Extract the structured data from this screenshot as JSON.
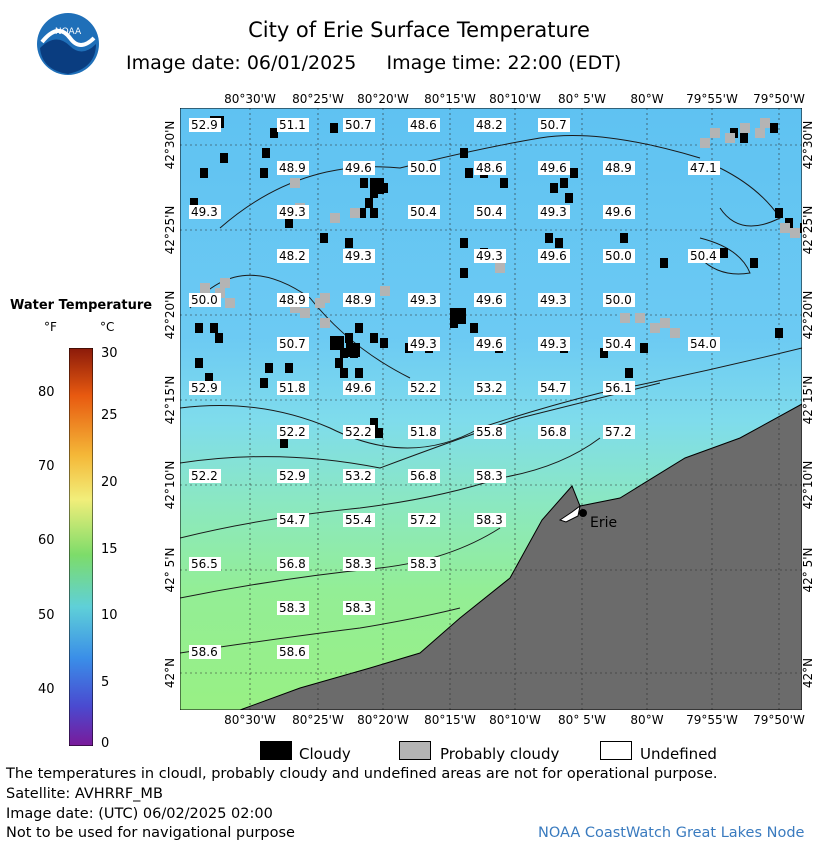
{
  "header": {
    "title": "City of Erie Surface Temperature",
    "date_line": "Image date: 06/01/2025     Image time: 22:00 (EDT)"
  },
  "map": {
    "lon_ticks": [
      "80°30'W",
      "80°25'W",
      "80°20'W",
      "80°15'W",
      "80°10'W",
      "80° 5'W",
      "80°W",
      "79°55'W",
      "79°50'W"
    ],
    "lat_ticks": [
      "42°30'N",
      "42°25'N",
      "42°20'N",
      "42°15'N",
      "42°10'N",
      "42° 5'N",
      "42°N"
    ],
    "city_label": "Erie",
    "temperature_labels": [
      {
        "t": "52.9",
        "c": 0,
        "r": 0
      },
      {
        "t": "51.1",
        "c": 1,
        "r": 0
      },
      {
        "t": "50.7",
        "c": 2,
        "r": 0
      },
      {
        "t": "48.6",
        "c": 3,
        "r": 0
      },
      {
        "t": "48.2",
        "c": 4,
        "r": 0
      },
      {
        "t": "50.7",
        "c": 5,
        "r": 0
      },
      {
        "t": "48.9",
        "c": 1,
        "r": 1
      },
      {
        "t": "49.6",
        "c": 2,
        "r": 1
      },
      {
        "t": "50.0",
        "c": 3,
        "r": 1
      },
      {
        "t": "48.6",
        "c": 4,
        "r": 1
      },
      {
        "t": "49.6",
        "c": 5,
        "r": 1
      },
      {
        "t": "48.9",
        "c": 6,
        "r": 1
      },
      {
        "t": "47.1",
        "c": 7,
        "r": 1
      },
      {
        "t": "49.3",
        "c": 0,
        "r": 2
      },
      {
        "t": "49.3",
        "c": 1,
        "r": 2
      },
      {
        "t": "50.4",
        "c": 3,
        "r": 2
      },
      {
        "t": "50.4",
        "c": 4,
        "r": 2
      },
      {
        "t": "49.3",
        "c": 5,
        "r": 2
      },
      {
        "t": "49.6",
        "c": 6,
        "r": 2
      },
      {
        "t": "48.2",
        "c": 1,
        "r": 3
      },
      {
        "t": "49.3",
        "c": 2,
        "r": 3
      },
      {
        "t": "49.3",
        "c": 4,
        "r": 3
      },
      {
        "t": "49.6",
        "c": 5,
        "r": 3
      },
      {
        "t": "50.0",
        "c": 6,
        "r": 3
      },
      {
        "t": "50.4",
        "c": 7,
        "r": 3
      },
      {
        "t": "50.0",
        "c": 0,
        "r": 4
      },
      {
        "t": "48.9",
        "c": 1,
        "r": 4
      },
      {
        "t": "48.9",
        "c": 2,
        "r": 4
      },
      {
        "t": "49.3",
        "c": 3,
        "r": 4
      },
      {
        "t": "49.6",
        "c": 4,
        "r": 4
      },
      {
        "t": "49.3",
        "c": 5,
        "r": 4
      },
      {
        "t": "50.0",
        "c": 6,
        "r": 4
      },
      {
        "t": "50.7",
        "c": 1,
        "r": 5
      },
      {
        "t": "49.3",
        "c": 3,
        "r": 5
      },
      {
        "t": "49.6",
        "c": 4,
        "r": 5
      },
      {
        "t": "49.3",
        "c": 5,
        "r": 5
      },
      {
        "t": "50.4",
        "c": 6,
        "r": 5
      },
      {
        "t": "54.0",
        "c": 7,
        "r": 5
      },
      {
        "t": "52.9",
        "c": 0,
        "r": 6
      },
      {
        "t": "51.8",
        "c": 1,
        "r": 6
      },
      {
        "t": "49.6",
        "c": 2,
        "r": 6
      },
      {
        "t": "52.2",
        "c": 3,
        "r": 6
      },
      {
        "t": "53.2",
        "c": 4,
        "r": 6
      },
      {
        "t": "54.7",
        "c": 5,
        "r": 6
      },
      {
        "t": "56.1",
        "c": 6,
        "r": 6
      },
      {
        "t": "52.2",
        "c": 1,
        "r": 7
      },
      {
        "t": "52.2",
        "c": 2,
        "r": 7
      },
      {
        "t": "51.8",
        "c": 3,
        "r": 7
      },
      {
        "t": "55.8",
        "c": 4,
        "r": 7
      },
      {
        "t": "56.8",
        "c": 5,
        "r": 7
      },
      {
        "t": "57.2",
        "c": 6,
        "r": 7
      },
      {
        "t": "52.2",
        "c": 0,
        "r": 8
      },
      {
        "t": "52.9",
        "c": 1,
        "r": 8
      },
      {
        "t": "53.2",
        "c": 2,
        "r": 8
      },
      {
        "t": "56.8",
        "c": 3,
        "r": 8
      },
      {
        "t": "58.3",
        "c": 4,
        "r": 8
      },
      {
        "t": "54.7",
        "c": 1,
        "r": 9
      },
      {
        "t": "55.4",
        "c": 2,
        "r": 9
      },
      {
        "t": "57.2",
        "c": 3,
        "r": 9
      },
      {
        "t": "58.3",
        "c": 4,
        "r": 9
      },
      {
        "t": "56.5",
        "c": 0,
        "r": 10
      },
      {
        "t": "56.8",
        "c": 1,
        "r": 10
      },
      {
        "t": "58.3",
        "c": 2,
        "r": 10
      },
      {
        "t": "58.3",
        "c": 3,
        "r": 10
      },
      {
        "t": "58.3",
        "c": 1,
        "r": 11
      },
      {
        "t": "58.3",
        "c": 2,
        "r": 11
      },
      {
        "t": "58.6",
        "c": 0,
        "r": 12
      },
      {
        "t": "58.6",
        "c": 1,
        "r": 12
      }
    ]
  },
  "legend": {
    "title": "Water Temperature",
    "unit_f": "°F",
    "unit_c": "°C",
    "f_ticks": [
      "80",
      "70",
      "60",
      "50",
      "40"
    ],
    "c_ticks": [
      "30",
      "25",
      "20",
      "15",
      "10",
      "5",
      "0"
    ],
    "key": {
      "cloudy": "Cloudy",
      "probably_cloudy": "Probably cloudy",
      "undefined": "Undefined"
    }
  },
  "footer": {
    "note": "The temperatures in cloudl, probably cloudy and undefined areas are not for operational purpose.",
    "satellite": "Satellite: AVHRRF_MB",
    "utc_date": "Image date: (UTC) 06/02/2025  02:00",
    "nav_warning": "Not to be used for navigational purpose",
    "credit": "NOAA CoastWatch Great Lakes Node"
  },
  "colors": {
    "land": "#6b6b6b",
    "cloud": "#000000",
    "probably_cloudy": "#b4b4b4",
    "title_accent": "#3a7bbf"
  }
}
